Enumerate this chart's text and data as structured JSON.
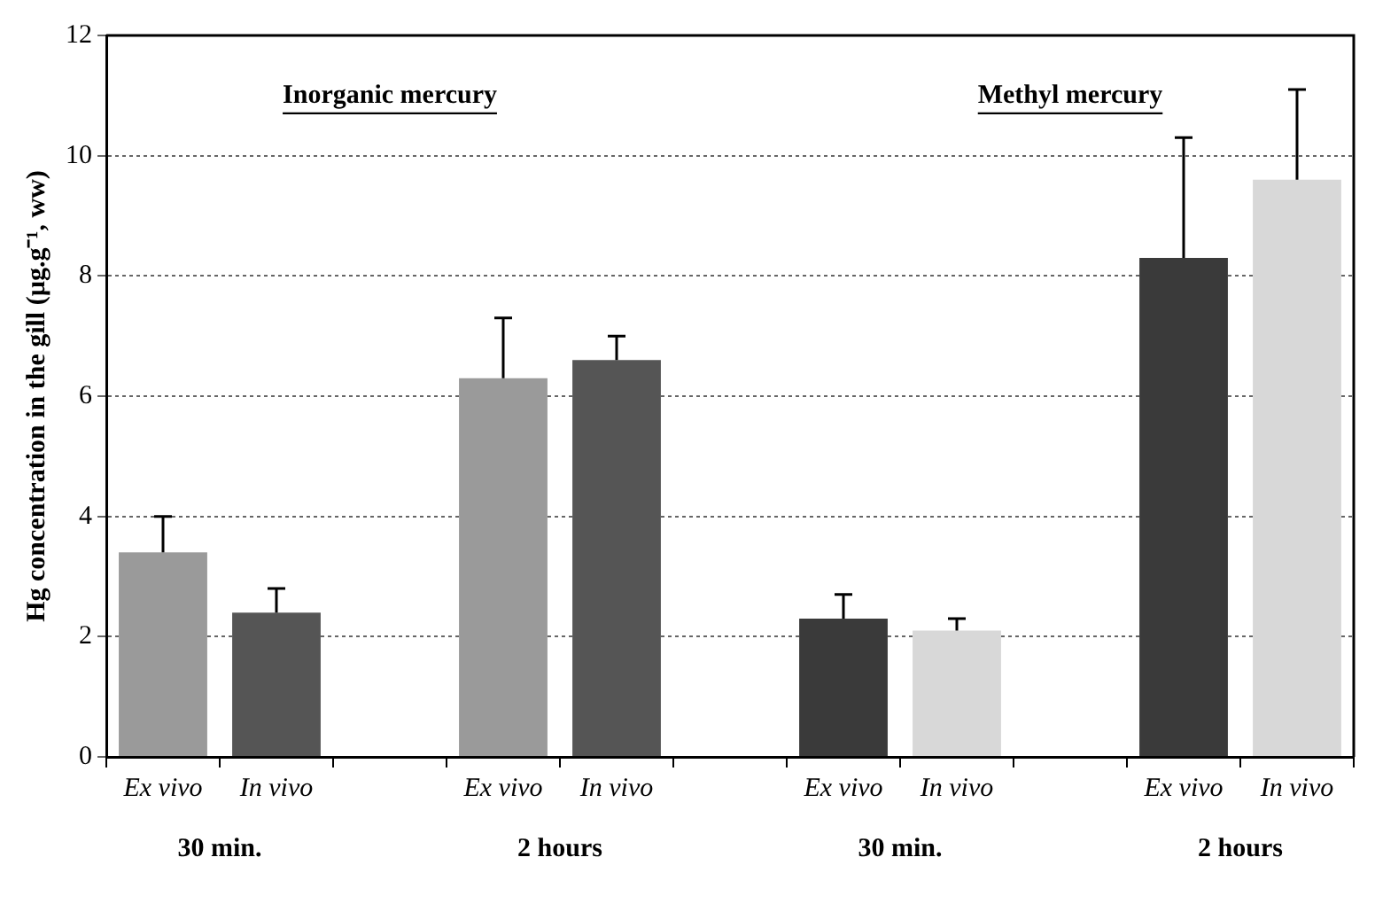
{
  "chart_data": {
    "type": "bar",
    "ylabel": "Hg concentration in the gill (µg.g⁻¹, ww)",
    "categories": [
      "Ex vivo",
      "In vivo",
      null,
      "Ex vivo",
      "In vivo",
      null,
      "Ex vivo",
      "In vivo",
      null,
      "Ex vivo",
      "In vivo"
    ],
    "values": [
      3.4,
      2.4,
      null,
      6.3,
      6.6,
      null,
      2.3,
      2.1,
      null,
      8.3,
      9.6
    ],
    "colors": [
      "#9a9a9a",
      "#555555",
      "#ffffff",
      "#9a9a9a",
      "#555555",
      "#ffffff",
      "#3a3a3a",
      "#d8d8d8",
      "#ffffff",
      "#3a3a3a",
      "#d8d8d8"
    ],
    "errors": [
      [
        3.4,
        4.0
      ],
      [
        2.4,
        2.8
      ],
      null,
      [
        6.3,
        7.3
      ],
      [
        6.6,
        7.0
      ],
      null,
      [
        2.3,
        2.7
      ],
      [
        2.1,
        2.3
      ],
      null,
      [
        8.3,
        10.3
      ],
      [
        9.6,
        11.1
      ]
    ],
    "ylim": [
      0,
      12
    ],
    "yticks": [
      0,
      2,
      4,
      6,
      8,
      10,
      12
    ],
    "grid": "y",
    "legend": false,
    "annotations": [
      "Inorganic mercury",
      "Methyl mercury",
      "30 min.",
      "2 hours",
      "30 min.",
      "2 hours"
    ]
  }
}
